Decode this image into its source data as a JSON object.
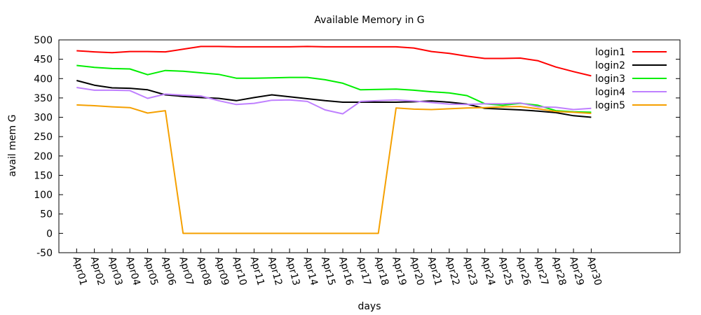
{
  "chart_data": {
    "type": "line",
    "title": "Available Memory in G",
    "xlabel": "days",
    "ylabel": "avail mem G",
    "ylim": [
      -50,
      500
    ],
    "yticks": [
      -50,
      0,
      50,
      100,
      150,
      200,
      250,
      300,
      350,
      400,
      450,
      500
    ],
    "x_slots": 35,
    "grid": false,
    "legend": "top-right",
    "categories": [
      "Apr01",
      "Apr02",
      "Apr03",
      "Apr04",
      "Apr05",
      "Apr06",
      "Apr07",
      "Apr08",
      "Apr09",
      "Apr10",
      "Apr11",
      "Apr12",
      "Apr13",
      "Apr14",
      "Apr15",
      "Apr16",
      "Apr17",
      "Apr18",
      "Apr19",
      "Apr20",
      "Apr21",
      "Apr22",
      "Apr23",
      "Apr24",
      "Apr25",
      "Apr26",
      "Apr27",
      "Apr28",
      "Apr29",
      "Apr30"
    ],
    "series": [
      {
        "name": "login1",
        "color": "#ff0000",
        "values": [
          472,
          469,
          467,
          470,
          470,
          469,
          476,
          483,
          483,
          482,
          482,
          482,
          482,
          483,
          482,
          482,
          482,
          482,
          482,
          479,
          470,
          465,
          458,
          452,
          452,
          453,
          446,
          430,
          418,
          407
        ]
      },
      {
        "name": "login2",
        "color": "#000000",
        "values": [
          395,
          383,
          376,
          375,
          371,
          358,
          354,
          351,
          349,
          343,
          351,
          358,
          353,
          348,
          343,
          339,
          339,
          339,
          339,
          340,
          342,
          339,
          334,
          323,
          321,
          319,
          316,
          312,
          304,
          300
        ]
      },
      {
        "name": "login3",
        "color": "#00ee00",
        "values": [
          434,
          429,
          426,
          425,
          410,
          421,
          419,
          415,
          411,
          401,
          401,
          402,
          403,
          403,
          397,
          388,
          371,
          372,
          373,
          370,
          366,
          363,
          356,
          335,
          331,
          336,
          331,
          317,
          314,
          313
        ]
      },
      {
        "name": "login4",
        "color": "#bf80ff",
        "values": [
          377,
          370,
          370,
          369,
          349,
          360,
          357,
          355,
          343,
          333,
          336,
          344,
          345,
          341,
          319,
          309,
          341,
          343,
          345,
          342,
          338,
          334,
          333,
          335,
          335,
          337,
          327,
          326,
          320,
          323
        ]
      },
      {
        "name": "login5",
        "color": "#f5a000",
        "values": [
          332,
          330,
          327,
          325,
          311,
          317,
          0,
          0,
          0,
          0,
          0,
          0,
          0,
          0,
          0,
          0,
          0,
          0,
          324,
          321,
          320,
          322,
          324,
          325,
          327,
          328,
          322,
          315,
          313,
          310
        ]
      }
    ]
  }
}
